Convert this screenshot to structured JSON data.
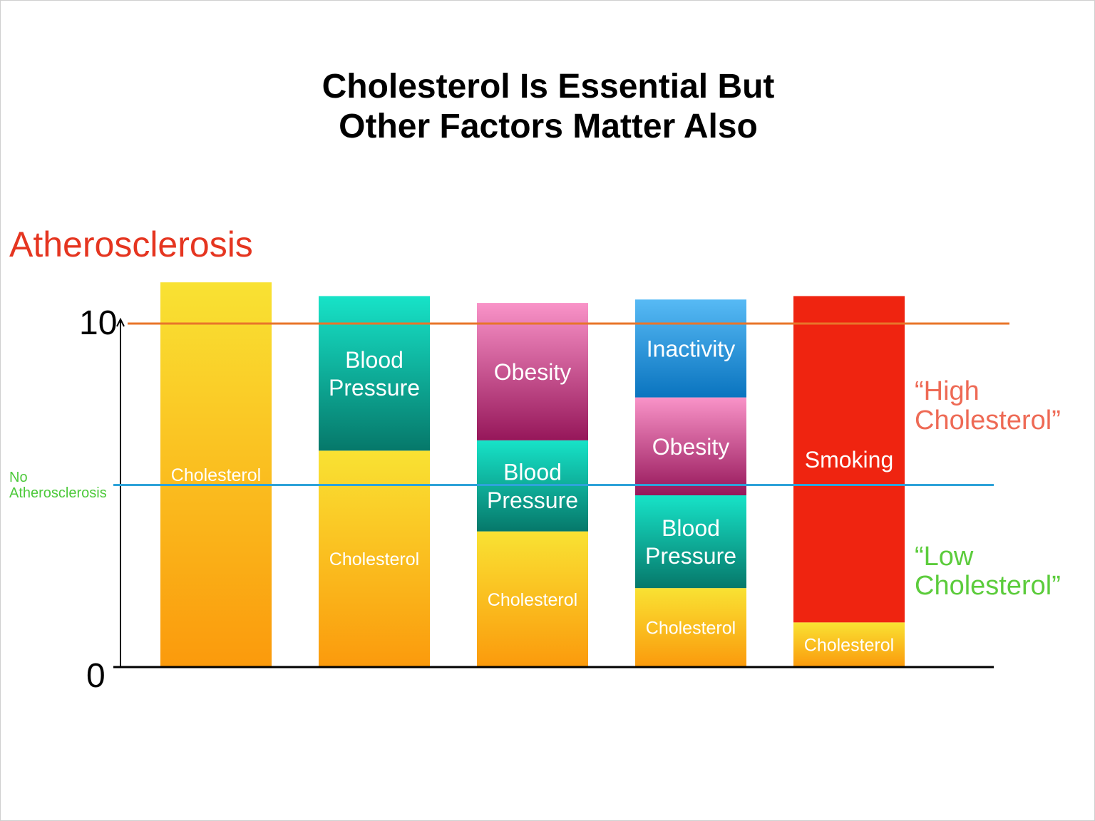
{
  "title": {
    "line1": "Cholesterol Is Essential But",
    "line2": "Other Factors Matter Also"
  },
  "annotations": {
    "atherosclerosis": "Atherosclerosis",
    "no_atherosclerosis": [
      "No",
      "Atherosclerosis"
    ],
    "high_cholesterol": [
      "“High",
      "Cholesterol”"
    ],
    "low_cholesterol": [
      "“Low",
      "Cholesterol”"
    ]
  },
  "colors": {
    "atherosclerosis_red": "#e53520",
    "no_athero_green": "#4cc93a",
    "high_label": "#ee6a55",
    "low_label": "#5ccc3c",
    "threshold_orange": "#e8752a",
    "threshold_blue": "#2ea3d9",
    "segment_colors": {
      "Cholesterol": [
        "#f9e233",
        "#fb9a0c"
      ],
      "Blood Pressure": [
        "#17e3c8",
        "#06786a"
      ],
      "Obesity": [
        "#f993c8",
        "#96175a"
      ],
      "Inactivity": [
        "#57baf5",
        "#0a74bf"
      ],
      "Smoking": [
        "#ef2410",
        "#ef2410"
      ]
    }
  },
  "chart_data": {
    "type": "bar",
    "stacked": true,
    "title": "Cholesterol Is Essential But Other Factors Matter Also",
    "ylim": [
      0,
      10
    ],
    "yticks": [
      0,
      10
    ],
    "reference_lines": [
      {
        "name": "Atherosclerosis threshold",
        "value": 10
      },
      {
        "name": "No Atherosclerosis threshold",
        "value": 5.3
      }
    ],
    "stacks": [
      {
        "segments": [
          {
            "label": "Cholesterol",
            "lines": [
              "Cholesterol"
            ],
            "value": 11.2
          }
        ]
      },
      {
        "segments": [
          {
            "label": "Cholesterol",
            "lines": [
              "Cholesterol"
            ],
            "value": 6.3
          },
          {
            "label": "Blood Pressure",
            "lines": [
              "Blood",
              "Pressure"
            ],
            "value": 4.5
          }
        ]
      },
      {
        "segments": [
          {
            "label": "Cholesterol",
            "lines": [
              "Cholesterol"
            ],
            "value": 3.95
          },
          {
            "label": "Blood Pressure",
            "lines": [
              "Blood",
              "Pressure"
            ],
            "value": 2.65
          },
          {
            "label": "Obesity",
            "lines": [
              "Obesity"
            ],
            "value": 4.0
          }
        ]
      },
      {
        "segments": [
          {
            "label": "Cholesterol",
            "lines": [
              "Cholesterol"
            ],
            "value": 2.3
          },
          {
            "label": "Blood Pressure",
            "lines": [
              "Blood",
              "Pressure"
            ],
            "value": 2.7
          },
          {
            "label": "Obesity",
            "lines": [
              "Obesity"
            ],
            "value": 2.85
          },
          {
            "label": "Inactivity",
            "lines": [
              "Inactivity"
            ],
            "value": 2.85
          }
        ]
      },
      {
        "segments": [
          {
            "label": "Cholesterol",
            "lines": [
              "Cholesterol"
            ],
            "value": 1.3
          },
          {
            "label": "Smoking",
            "lines": [
              "Smoking"
            ],
            "value": 9.5
          }
        ]
      }
    ]
  }
}
